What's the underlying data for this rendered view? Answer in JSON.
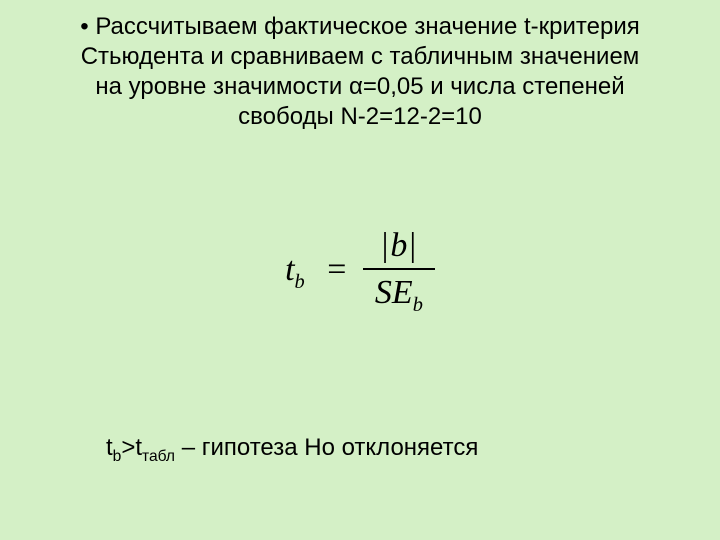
{
  "colors": {
    "background": "#d4f0c6",
    "text": "#000000",
    "rule": "#000000"
  },
  "typography": {
    "body_font": "Arial",
    "body_size_pt": 18,
    "formula_font": "Times New Roman",
    "formula_style": "italic",
    "formula_size_pt": 26
  },
  "bullet": {
    "glyph": "•",
    "text": "Рассчитываем фактическое значение  t-критерия Стьюдента и сравниваем с табличным значением на уровне значимости α=0,05 и числа степеней свободы N-2=12-2=10"
  },
  "formula": {
    "lhs_var": "t",
    "lhs_sub": "b",
    "equals": "=",
    "numerator_var": "b",
    "abs_bar": "|",
    "denominator_main": "SE",
    "denominator_sub": "b"
  },
  "conclusion": {
    "t_var": "t",
    "sub1": "b",
    "gt": ">",
    "sub2": "табл",
    "tail": " – гипотеза Но отклоняется"
  }
}
